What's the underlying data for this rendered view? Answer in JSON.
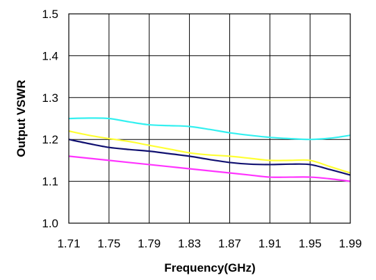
{
  "chart_data": {
    "type": "line",
    "title": "",
    "xlabel": "Frequency(GHz)",
    "ylabel": "Output VSWR",
    "x": [
      1.71,
      1.73,
      1.75,
      1.77,
      1.79,
      1.81,
      1.83,
      1.85,
      1.87,
      1.89,
      1.91,
      1.93,
      1.95,
      1.97,
      1.99
    ],
    "x_ticks": [
      "1.71",
      "1.75",
      "1.79",
      "1.83",
      "1.87",
      "1.91",
      "1.95",
      "1.99"
    ],
    "y_ticks": [
      "1.0",
      "1.1",
      "1.2",
      "1.3",
      "1.4",
      "1.5"
    ],
    "xlim": [
      1.71,
      1.99
    ],
    "ylim": [
      1.0,
      1.5
    ],
    "grid": true,
    "legend": "none",
    "series": [
      {
        "color": "#33f0f0",
        "values": [
          1.25,
          1.251,
          1.25,
          1.242,
          1.235,
          1.233,
          1.231,
          1.224,
          1.216,
          1.21,
          1.205,
          1.202,
          1.2,
          1.203,
          1.21
        ]
      },
      {
        "color": "#ffff33",
        "values": [
          1.22,
          1.21,
          1.202,
          1.195,
          1.186,
          1.177,
          1.168,
          1.163,
          1.16,
          1.155,
          1.15,
          1.15,
          1.15,
          1.135,
          1.12
        ]
      },
      {
        "color": "#101070",
        "values": [
          1.2,
          1.19,
          1.181,
          1.176,
          1.172,
          1.166,
          1.16,
          1.152,
          1.145,
          1.141,
          1.14,
          1.141,
          1.14,
          1.128,
          1.115
        ]
      },
      {
        "color": "#ff33ff",
        "values": [
          1.16,
          1.155,
          1.15,
          1.145,
          1.14,
          1.135,
          1.13,
          1.125,
          1.12,
          1.115,
          1.11,
          1.11,
          1.11,
          1.106,
          1.1
        ]
      }
    ]
  }
}
